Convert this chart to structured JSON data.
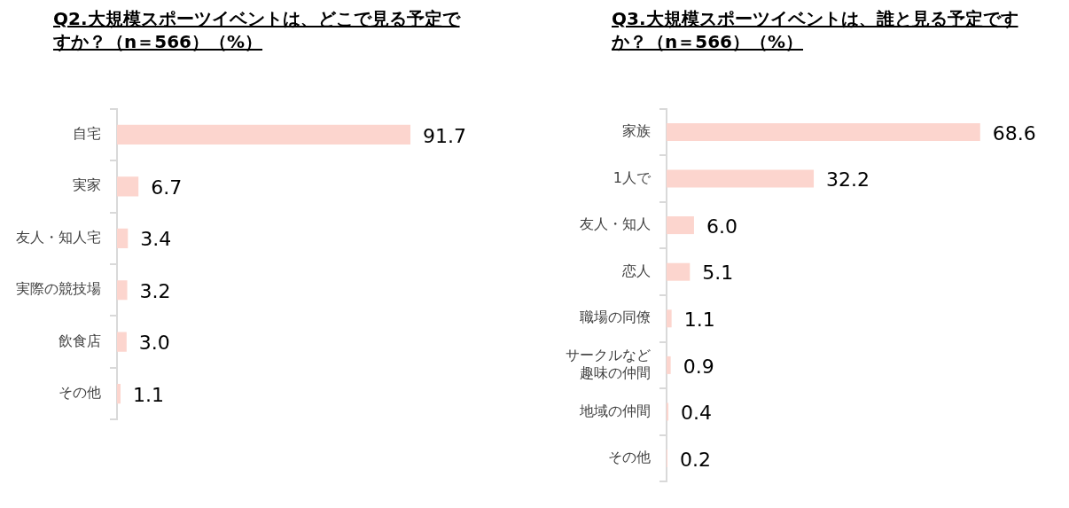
{
  "chart_data": [
    {
      "type": "bar",
      "orientation": "horizontal",
      "title": "Q2.大規模スポーツイベントは、どこで見る予定ですか？（n＝566）（%）",
      "categories": [
        "自宅",
        "実家",
        "友人・知人宅",
        "実際の競技場",
        "飲食店",
        "その他"
      ],
      "series": [
        {
          "color": "#fcd5ce",
          "values": [
            91.7,
            6.7,
            3.4,
            3.2,
            3.0,
            1.1
          ],
          "value_labels": [
            "91.7",
            "6.7",
            "3.4",
            "3.2",
            "3.0",
            "1.1"
          ]
        }
      ],
      "legend": false,
      "tick_labels": "y"
    },
    {
      "type": "bar",
      "orientation": "horizontal",
      "title": "Q3.大規模スポーツイベントは、誰と見る予定ですか？（n＝566）（%）",
      "categories": [
        "家族",
        "1人で",
        "友人・知人",
        "恋人",
        "職場の同僚",
        "サークルなど趣味の仲間",
        "地域の仲間",
        "その他"
      ],
      "series": [
        {
          "color": "#fcd5ce",
          "values": [
            68.6,
            32.2,
            6.0,
            5.1,
            1.1,
            0.9,
            0.4,
            0.2
          ],
          "value_labels": [
            "68.6",
            "32.2",
            "6.0",
            "5.1",
            "1.1",
            "0.9",
            "0.4",
            "0.2"
          ]
        }
      ],
      "legend": false,
      "tick_labels": "y"
    }
  ]
}
